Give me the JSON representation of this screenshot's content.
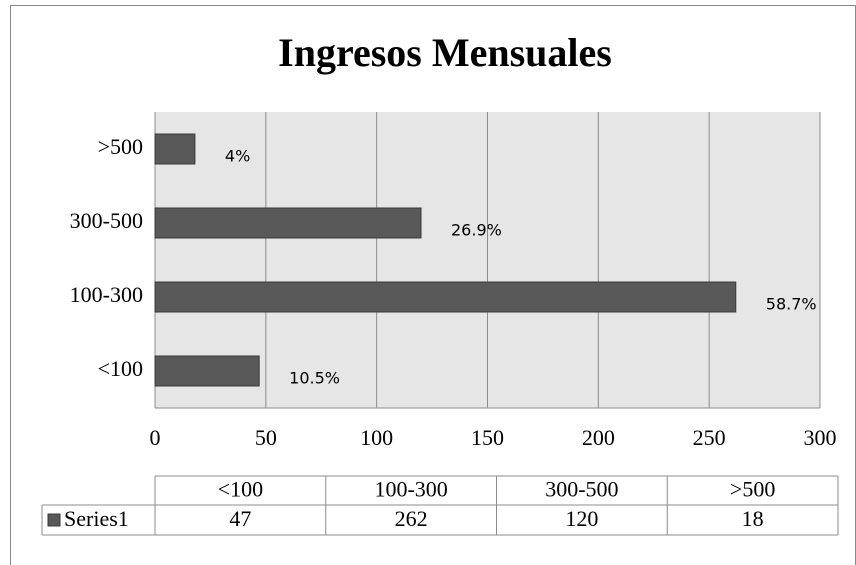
{
  "chart_data": {
    "type": "barh",
    "title": "Ingresos Mensuales",
    "categories": [
      "<100",
      "100-300",
      "300-500",
      ">500"
    ],
    "series": [
      {
        "name": "Series1",
        "color": "#595959",
        "values": [
          47,
          262,
          120,
          18
        ]
      }
    ],
    "data_labels": [
      "10.5%",
      "58.7%",
      "26.9%",
      "4%"
    ],
    "xlim": [
      0,
      300
    ],
    "xticks": [
      0,
      50,
      100,
      150,
      200,
      250,
      300
    ],
    "grid": true,
    "data_table": true
  }
}
